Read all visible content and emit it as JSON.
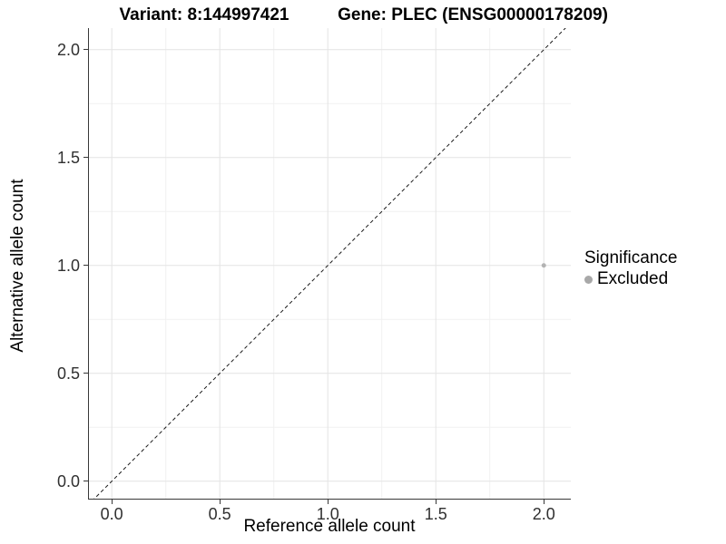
{
  "titles": {
    "left": "Variant: 8:144997421",
    "right": "Gene: PLEC (ENSG00000178209)"
  },
  "axes": {
    "x_label": "Reference allele count",
    "y_label": "Alternative allele count"
  },
  "legend": {
    "title": "Significance",
    "items": [
      {
        "label": "Excluded",
        "color": "#A8A8A8"
      }
    ]
  },
  "chart_data": {
    "type": "scatter",
    "title_left": "Variant: 8:144997421",
    "title_right": "Gene: PLEC (ENSG00000178209)",
    "xlabel": "Reference allele count",
    "ylabel": "Alternative allele count",
    "xlim": [
      -0.11,
      2.125
    ],
    "ylim": [
      -0.085,
      2.1
    ],
    "x_ticks": [
      0.0,
      0.5,
      1.0,
      1.5,
      2.0
    ],
    "y_ticks": [
      0.0,
      0.5,
      1.0,
      1.5,
      2.0
    ],
    "x_tick_labels": [
      "0.0",
      "0.5",
      "1.0",
      "1.5",
      "2.0"
    ],
    "y_tick_labels": [
      "0.0",
      "0.5",
      "1.0",
      "1.5",
      "2.0"
    ],
    "x_minor_gridlines": [
      0.25,
      0.75,
      1.25,
      1.75
    ],
    "y_minor_gridlines": [
      0.25,
      0.75,
      1.25,
      1.75
    ],
    "grid": true,
    "legend_position": "right",
    "series": [
      {
        "name": "Excluded",
        "points": [
          {
            "x": 2.0,
            "y": 1.0
          }
        ],
        "color": "#B3B3B3"
      }
    ],
    "reference_line": {
      "type": "identity y=x",
      "style": "dashed",
      "color": "#1A1A1A"
    }
  },
  "colors": {
    "grid_major": "#E4E4E4",
    "grid_minor": "#F1F1F1",
    "axis_line": "#383838",
    "tick_text": "#303030",
    "point": "#B3B3B3",
    "diagonal": "#1A1A1A"
  }
}
